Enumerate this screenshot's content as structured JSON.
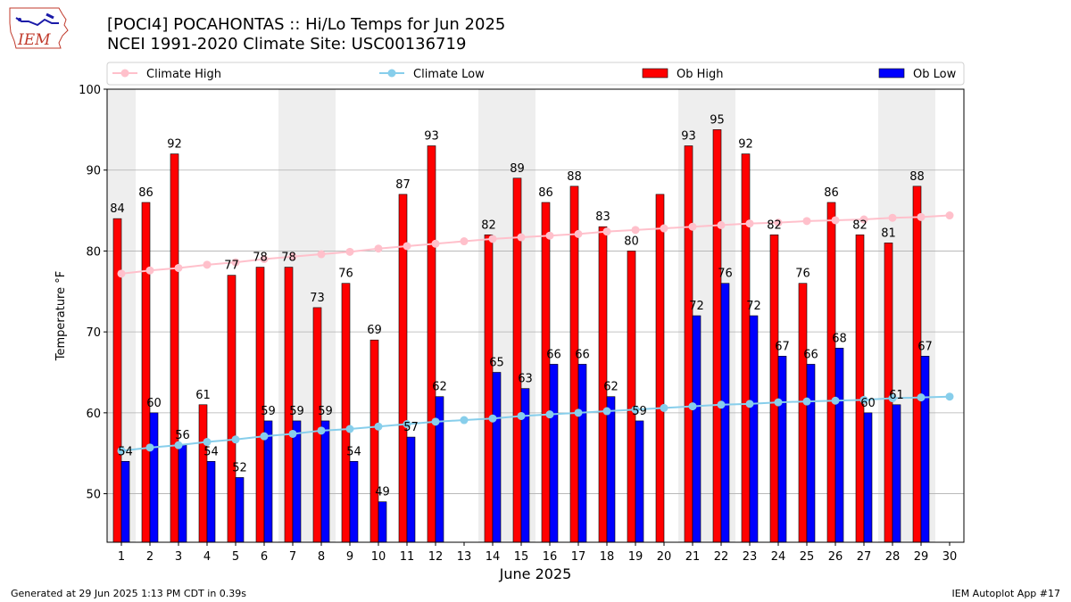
{
  "header": {
    "title_line1": "[POCI4] POCAHONTAS :: Hi/Lo Temps for Jun 2025",
    "title_line2": "NCEI 1991-2020 Climate Site: USC00136719",
    "logo_text": "IEM"
  },
  "footer": {
    "generated": "Generated at 29 Jun 2025 1:13 PM CDT in 0.39s",
    "app": "IEM Autoplot App #17"
  },
  "colors": {
    "ob_high": "#ff0000",
    "ob_low": "#0000ff",
    "climate_high": "#ffc0cb",
    "climate_low": "#87ceeb",
    "weekend_shade": "#eeeeee",
    "grid": "#b0b0b0"
  },
  "chart_data": {
    "type": "bar",
    "title": "[POCI4] POCAHONTAS :: Hi/Lo Temps for Jun 2025",
    "xlabel": "June 2025",
    "ylabel": "Temperature °F",
    "ylim": [
      44,
      100
    ],
    "yticks": [
      50,
      60,
      70,
      80,
      90,
      100
    ],
    "grid": true,
    "legend_position": "top",
    "categories": [
      1,
      2,
      3,
      4,
      5,
      6,
      7,
      8,
      9,
      10,
      11,
      12,
      13,
      14,
      15,
      16,
      17,
      18,
      19,
      20,
      21,
      22,
      23,
      24,
      25,
      26,
      27,
      28,
      29,
      30
    ],
    "weekend_days": [
      1,
      7,
      8,
      14,
      15,
      21,
      22,
      28,
      29
    ],
    "series": [
      {
        "name": "Climate High",
        "kind": "line",
        "values": [
          77.2,
          77.6,
          77.9,
          78.3,
          78.6,
          79.0,
          79.3,
          79.6,
          79.9,
          80.3,
          80.6,
          80.9,
          81.2,
          81.5,
          81.7,
          81.9,
          82.1,
          82.4,
          82.6,
          82.8,
          83.0,
          83.2,
          83.4,
          83.5,
          83.7,
          83.8,
          83.9,
          84.1,
          84.2,
          84.4
        ]
      },
      {
        "name": "Climate Low",
        "kind": "line",
        "values": [
          55.3,
          55.7,
          56.0,
          56.4,
          56.7,
          57.1,
          57.4,
          57.8,
          58.0,
          58.3,
          58.6,
          58.9,
          59.1,
          59.3,
          59.6,
          59.8,
          60.0,
          60.2,
          60.4,
          60.6,
          60.8,
          61.0,
          61.1,
          61.3,
          61.4,
          61.5,
          61.6,
          61.8,
          61.9,
          62.0
        ]
      },
      {
        "name": "Ob High",
        "kind": "bar",
        "values": [
          84,
          86,
          92,
          61,
          77,
          78,
          78,
          73,
          76,
          69,
          87,
          93,
          null,
          82,
          89,
          86,
          88,
          83,
          80,
          87,
          93,
          95,
          92,
          82,
          76,
          86,
          82,
          81,
          88,
          null
        ],
        "labels": [
          "84",
          "86",
          "92",
          "61",
          "77",
          "78",
          "78",
          "73",
          "76",
          "69",
          "87",
          "93",
          "",
          "82",
          "89",
          "86",
          "88",
          "83",
          "80",
          "",
          "93",
          "95",
          "92",
          "82",
          "76",
          "86",
          "82",
          "81",
          "88",
          ""
        ]
      },
      {
        "name": "Ob Low",
        "kind": "bar",
        "values": [
          54,
          60,
          56,
          54,
          52,
          59,
          59,
          59,
          54,
          49,
          57,
          62,
          null,
          65,
          63,
          66,
          66,
          62,
          59,
          null,
          72,
          76,
          72,
          67,
          66,
          68,
          60,
          61,
          67,
          null
        ],
        "labels": [
          "54",
          "60",
          "56",
          "54",
          "52",
          "59",
          "59",
          "59",
          "54",
          "49",
          "57",
          "62",
          "",
          "65",
          "63",
          "66",
          "66",
          "62",
          "59",
          "",
          "72",
          "76",
          "72",
          "67",
          "66",
          "68",
          "60",
          "61",
          "67",
          ""
        ]
      }
    ]
  }
}
